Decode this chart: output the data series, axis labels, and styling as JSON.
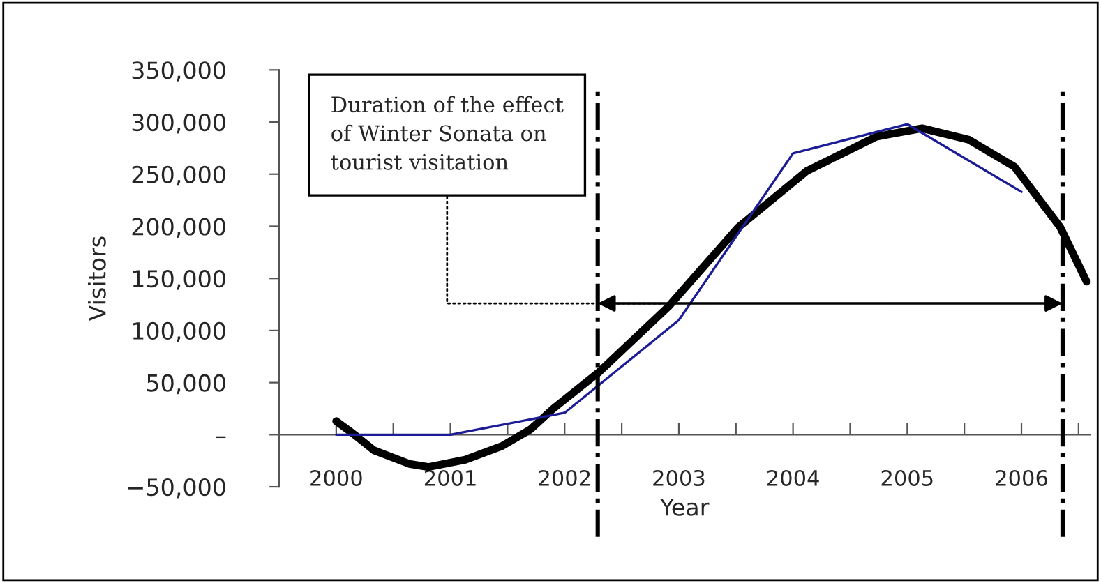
{
  "chart_data": {
    "type": "line",
    "xlabel": "Year",
    "ylabel": "Visitors",
    "annotations": [
      {
        "text": "Duration of the effect\nof Winter Sonata on\ntourist visitation",
        "x": 2002.87,
        "y": 126000
      }
    ],
    "xlim": [
      1999.5,
      2006.6
    ],
    "xticks": [
      {
        "value": 2000,
        "label": "2000"
      },
      {
        "value": 2001,
        "label": "2001"
      },
      {
        "value": 2002,
        "label": "2002"
      },
      {
        "value": 2003,
        "label": "2003"
      },
      {
        "value": 2004,
        "label": "2004"
      },
      {
        "value": 2005,
        "label": "2005"
      },
      {
        "value": 2006,
        "label": "2006"
      },
      {
        "value": 2000.5,
        "label": null
      },
      {
        "value": 2001.5,
        "label": null
      },
      {
        "value": 2002.5,
        "label": null
      },
      {
        "value": 2003.5,
        "label": null
      },
      {
        "value": 2004.5,
        "label": null
      },
      {
        "value": 2005.5,
        "label": null
      },
      {
        "value": 2006.5,
        "label": null
      }
    ],
    "ylim": [
      -50000,
      350000
    ],
    "yticks": [
      {
        "value": -50000,
        "label": "−50,000"
      },
      {
        "value": 0,
        "label": "–"
      },
      {
        "value": 50000,
        "label": "50,000"
      },
      {
        "value": 100000,
        "label": "100,000"
      },
      {
        "value": 150000,
        "label": "150,000"
      },
      {
        "value": 200000,
        "label": "200,000"
      },
      {
        "value": 250000,
        "label": "250,000"
      },
      {
        "value": 300000,
        "label": "300,000"
      },
      {
        "value": 350000,
        "label": "350,000"
      }
    ],
    "grid": false,
    "legend": false,
    "marker": "none",
    "series": [
      {
        "color": "#1c1c96",
        "x": [
          2000,
          2001,
          2002,
          2003,
          2004,
          2005,
          2006
        ],
        "values": [
          0,
          0,
          21000,
          110000,
          270000,
          298000,
          233000
        ]
      },
      {
        "color": "#000000",
        "x": [
          2000.0,
          2000.16,
          2000.33,
          2000.64,
          2000.81,
          2001.13,
          2001.45,
          2001.7,
          2001.9,
          2002.3,
          2002.91,
          2003.52,
          2004.12,
          2004.73,
          2005.13,
          2005.54,
          2005.94,
          2006.34,
          2006.57
        ],
        "values": [
          13000,
          0,
          -15000,
          -28000,
          -31000,
          -24000,
          -11000,
          5000,
          25000,
          60000,
          123000,
          199000,
          253000,
          286000,
          294000,
          283000,
          257000,
          199000,
          147000
        ]
      }
    ],
    "ref_lines": [
      {
        "axis": "x",
        "value": 2002.29,
        "line_style": "dashdot",
        "color": "#000000"
      },
      {
        "axis": "x",
        "value": 2006.36,
        "line_style": "dashdot",
        "color": "#000000"
      }
    ]
  }
}
